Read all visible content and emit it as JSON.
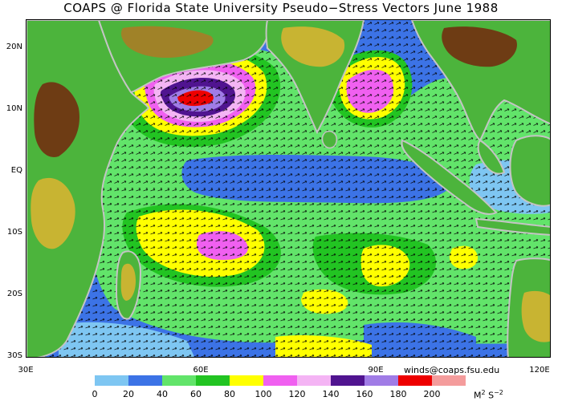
{
  "title": "COAPS @ Florida State University Pseudo−Stress Vectors  June 1988",
  "credit": "winds@coaps.fsu.edu",
  "map": {
    "lon_range": [
      30,
      120
    ],
    "lat_range": [
      -30,
      25
    ],
    "lat_labels": [
      "20N",
      "10N",
      "EQ",
      "10S",
      "20S",
      "30S"
    ],
    "lon_labels": [
      "30E",
      "60E",
      "90E",
      "120E"
    ]
  },
  "legend": {
    "ticks": [
      "0",
      "20",
      "40",
      "60",
      "80",
      "100",
      "120",
      "140",
      "160",
      "180",
      "200"
    ],
    "units_base": "M",
    "units_sup1": "2",
    "units_mid": " S",
    "units_sup2": "−2",
    "colors": [
      "#7ec6f2",
      "#3c73e6",
      "#62e46a",
      "#22c422",
      "#ffff00",
      "#f060f0",
      "#f4b4f4",
      "#501490",
      "#a07ce6",
      "#ee0000",
      "#f49c9c"
    ]
  },
  "colors": {
    "ocean_low": "#3c73e6",
    "ocean_calm": "#7ec6f2",
    "land_low": "#4cb43c",
    "land_high": "#6e3c14",
    "coast": "#c4c4c4"
  }
}
